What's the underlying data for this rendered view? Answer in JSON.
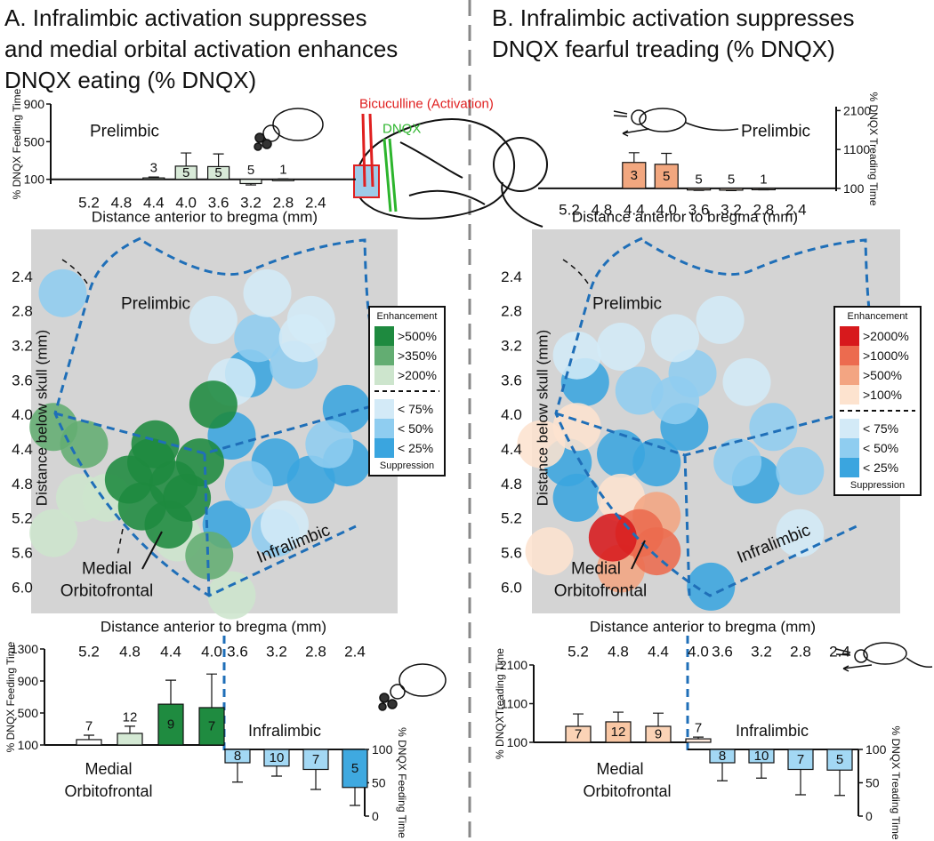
{
  "panels": [
    {
      "title_lines": [
        "A. Infralimbic activation suppresses",
        "and medial orbital activation enhances",
        "DNQX eating  (% DNQX)"
      ]
    },
    {
      "title_lines": [
        "B. Infralimbic activation suppresses",
        "DNQX fearful treading (% DNQX)"
      ]
    }
  ],
  "brain": {
    "activation_label": "Bicuculline (Activation)",
    "dnqx_label": "DNQX"
  },
  "chart_data": [
    {
      "type": "bar",
      "region": "Prelimbic",
      "categories": [
        "5.2",
        "4.8",
        "4.4",
        "4.0",
        "3.6",
        "3.2",
        "2.8",
        "2.4"
      ],
      "values": [
        null,
        null,
        115,
        240,
        235,
        55,
        100,
        null
      ],
      "errors": [
        null,
        null,
        10,
        140,
        135,
        15,
        5,
        null
      ],
      "n": [
        null,
        null,
        3,
        5,
        5,
        5,
        1,
        null
      ],
      "colors": [
        null,
        null,
        "#d8ead8",
        "#d8ead8",
        "#d8ead8",
        "#eef6ee",
        "#eef6ee",
        null
      ],
      "baseline": 100,
      "ylim": [
        50,
        900
      ],
      "yticks": [
        100,
        500,
        900
      ],
      "y_label": "% DNQX Feeding Time",
      "x_label": "Distance anterior to bregma (mm)",
      "y_axis": "left"
    },
    {
      "type": "bar",
      "region": "Prelimbic",
      "categories": [
        "5.2",
        "4.8",
        "4.4",
        "4.0",
        "3.6",
        "3.2",
        "2.8",
        "2.4"
      ],
      "values": [
        null,
        null,
        767,
        720,
        60,
        55,
        75,
        null
      ],
      "errors": [
        null,
        null,
        250,
        280,
        10,
        10,
        10,
        null
      ],
      "n": [
        null,
        null,
        3,
        5,
        5,
        5,
        1,
        null
      ],
      "colors": [
        null,
        null,
        "#f2a77f",
        "#f2a77f",
        "#fce6d6",
        "#fce6d6",
        "#fce6d6",
        null
      ],
      "baseline": 100,
      "ylim": [
        30,
        2200
      ],
      "yticks": [
        100,
        1100,
        2100
      ],
      "y_label": "% DNQX Treading Time",
      "x_label": "Distance anterior to bregma (mm)",
      "y_axis": "right"
    },
    {
      "type": "bar",
      "region_lines": [
        "Medial",
        "Orbitofrontal"
      ],
      "categories": [
        "5.2",
        "4.8",
        "4.4",
        "4.0"
      ],
      "values": [
        167,
        245,
        610,
        567
      ],
      "errors": [
        55,
        90,
        300,
        420
      ],
      "n": [
        7,
        12,
        9,
        7
      ],
      "colors": [
        "#ffffff",
        "#d4e9d4",
        "#1f8b40",
        "#1f8b40"
      ],
      "baseline": 100,
      "ylim": [
        100,
        1300
      ],
      "yticks": [
        100,
        500,
        900,
        1300
      ],
      "y_label": "% DNQX Feeding Time",
      "y_axis": "left"
    },
    {
      "type": "bar",
      "region_lines": [
        "Infralimbic"
      ],
      "categories": [
        "3.6",
        "3.2",
        "2.8",
        "2.4"
      ],
      "values": [
        80,
        75,
        70,
        43
      ],
      "errors": [
        29,
        15,
        30,
        27
      ],
      "n": [
        8,
        10,
        7,
        5
      ],
      "colors": [
        "#a3d8f4",
        "#a3d8f4",
        "#a3d8f4",
        "#3fa9e0"
      ],
      "baseline": 100,
      "ylim": [
        0,
        100
      ],
      "yticks": [
        0,
        50,
        100
      ],
      "y_label": "% DNQX Feeding Time",
      "y_axis": "right"
    },
    {
      "type": "bar",
      "region_lines": [
        "Medial",
        "Orbitofrontal"
      ],
      "categories": [
        "5.2",
        "4.8",
        "4.4",
        "4.0"
      ],
      "values": [
        514,
        630,
        514,
        190
      ],
      "errors": [
        320,
        250,
        340,
        45
      ],
      "n": [
        7,
        12,
        9,
        7
      ],
      "colors": [
        "#fbd3b6",
        "#f9c7a4",
        "#fbd3b6",
        "#fde9dc"
      ],
      "baseline": 100,
      "ylim": [
        100,
        2100
      ],
      "yticks": [
        100,
        1100,
        2100
      ],
      "y_label": "% DNQXTreading Time",
      "y_axis": "left"
    },
    {
      "type": "bar",
      "region_lines": [
        "Infralimbic"
      ],
      "categories": [
        "3.6",
        "3.2",
        "2.8",
        "2.4"
      ],
      "values": [
        80,
        80,
        70,
        69
      ],
      "errors": [
        27,
        23,
        38,
        38
      ],
      "n": [
        8,
        10,
        7,
        5
      ],
      "colors": [
        "#a3d8f4",
        "#a3d8f4",
        "#a3d8f4",
        "#a3d8f4"
      ],
      "baseline": 100,
      "ylim": [
        0,
        100
      ],
      "yticks": [
        0,
        50,
        100
      ],
      "y_label": "% DNQX Treading Time",
      "y_axis": "right"
    },
    {
      "type": "scatter",
      "x_label": "Distance anterior to bregma (mm)",
      "y_label": "Distance below skull (mm)",
      "xlim": [
        5.6,
        2.0
      ],
      "ylim": [
        1.85,
        6.3
      ],
      "yticks": [
        2.4,
        2.8,
        3.2,
        3.6,
        {
          "value": 4,
          "label": "4.0"
        },
        4.4,
        4.8,
        5.2,
        5.6,
        {
          "value": 6,
          "label": "6.0"
        }
      ],
      "regions": {
        "prelimbic": "Prelimbic",
        "infralimbic": "Infralimbic",
        "medial_orbitofrontal": [
          "Medial",
          "Orbitofrontal"
        ]
      },
      "legend": {
        "title": "Enhancement",
        "footer": "Suppression"
      },
      "series": [
        {
          "name": ">500%",
          "color": "#1e8a3f",
          "x": [
            3.81,
            4.64,
            4.42,
            4.2,
            4.07,
            4.51,
            3.94,
            4.25,
            4.38
          ],
          "y": [
            3.88,
            4.75,
            4.55,
            4.81,
            4.96,
            5.06,
            4.55,
            5.27,
            4.34
          ]
        },
        {
          "name": ">350%",
          "color": "#63ad72",
          "x": [
            3.85,
            5.08,
            5.38
          ],
          "y": [
            5.63,
            4.34,
            4.14
          ]
        },
        {
          "name": ">200%",
          "color": "#cde5cd",
          "x": [
            3.63,
            4.16,
            5.12,
            5.38,
            4.86
          ],
          "y": [
            6.09,
            5.42,
            4.96,
            5.37,
            4.96
          ]
        },
        {
          "name": "< 75%",
          "color": "#d3eaf7",
          "x": [
            3.81,
            3.28,
            2.93,
            3.63,
            2.85,
            3.11
          ],
          "y": [
            2.9,
            2.59,
            3.11,
            3.62,
            2.9,
            5.27
          ]
        },
        {
          "name": "< 50%",
          "color": "#8fcdf0",
          "x": [
            3.37,
            3.02,
            5.29,
            2.67,
            3.2,
            3.46
          ],
          "y": [
            3.11,
            3.42,
            2.59,
            4.34,
            5.37,
            4.81
          ]
        },
        {
          "name": "< 25%",
          "color": "#3aa5df",
          "x": [
            2.5,
            3.63,
            3.2,
            2.85,
            3.68,
            2.5,
            3.46
          ],
          "y": [
            4.55,
            4.24,
            4.55,
            4.75,
            5.27,
            3.93,
            3.52
          ]
        }
      ]
    },
    {
      "type": "scatter",
      "x_label": "Distance anterior to bregma (mm)",
      "y_label": "Distance below skull (mm)",
      "xlim": [
        5.6,
        2.0
      ],
      "ylim": [
        1.85,
        6.3
      ],
      "yticks": [
        2.4,
        2.8,
        3.2,
        3.6,
        {
          "value": 4,
          "label": "4.0"
        },
        4.4,
        4.8,
        5.2,
        5.6,
        {
          "value": 6,
          "label": "6.0"
        }
      ],
      "regions": {
        "prelimbic": "Prelimbic",
        "infralimbic": "Infralimbic",
        "medial_orbitofrontal": [
          "Medial",
          "Orbitofrontal"
        ]
      },
      "legend": {
        "title": "Enhancement",
        "footer": "Suppression"
      },
      "series": [
        {
          "name": ">2000%",
          "color": "#d7191c",
          "x": [
            4.81
          ],
          "y": [
            5.42
          ]
        },
        {
          "name": ">1000%",
          "color": "#ec6b4f",
          "x": [
            4.55,
            4.38
          ],
          "y": [
            5.37,
            5.58
          ]
        },
        {
          "name": ">500%",
          "color": "#f3a582",
          "x": [
            4.73,
            4.38
          ],
          "y": [
            5.78,
            5.17
          ]
        },
        {
          "name": ">100%",
          "color": "#fde3cf",
          "x": [
            5.51,
            5.16,
            5.43,
            4.73
          ],
          "y": [
            4.34,
            4.14,
            5.58,
            4.96
          ]
        },
        {
          "name": "< 75%",
          "color": "#d3eaf7",
          "x": [
            4.73,
            4.2,
            3.76,
            3.5,
            5.16,
            2.98
          ],
          "y": [
            3.21,
            3.11,
            2.9,
            3.62,
            3.31,
            5.37
          ]
        },
        {
          "name": "< 50%",
          "color": "#8fcdf0",
          "x": [
            4.55,
            4.03,
            3.24,
            2.98,
            3.59,
            4.2
          ],
          "y": [
            3.72,
            3.52,
            4.14,
            4.65,
            4.55,
            3.83
          ]
        },
        {
          "name": "< 25%",
          "color": "#3aa5df",
          "x": [
            5.08,
            4.73,
            4.11,
            5.16,
            3.85,
            3.41,
            5.25,
            4.38
          ],
          "y": [
            3.62,
            4.45,
            4.14,
            4.96,
            5.99,
            4.75,
            4.55,
            4.55
          ]
        }
      ]
    }
  ]
}
